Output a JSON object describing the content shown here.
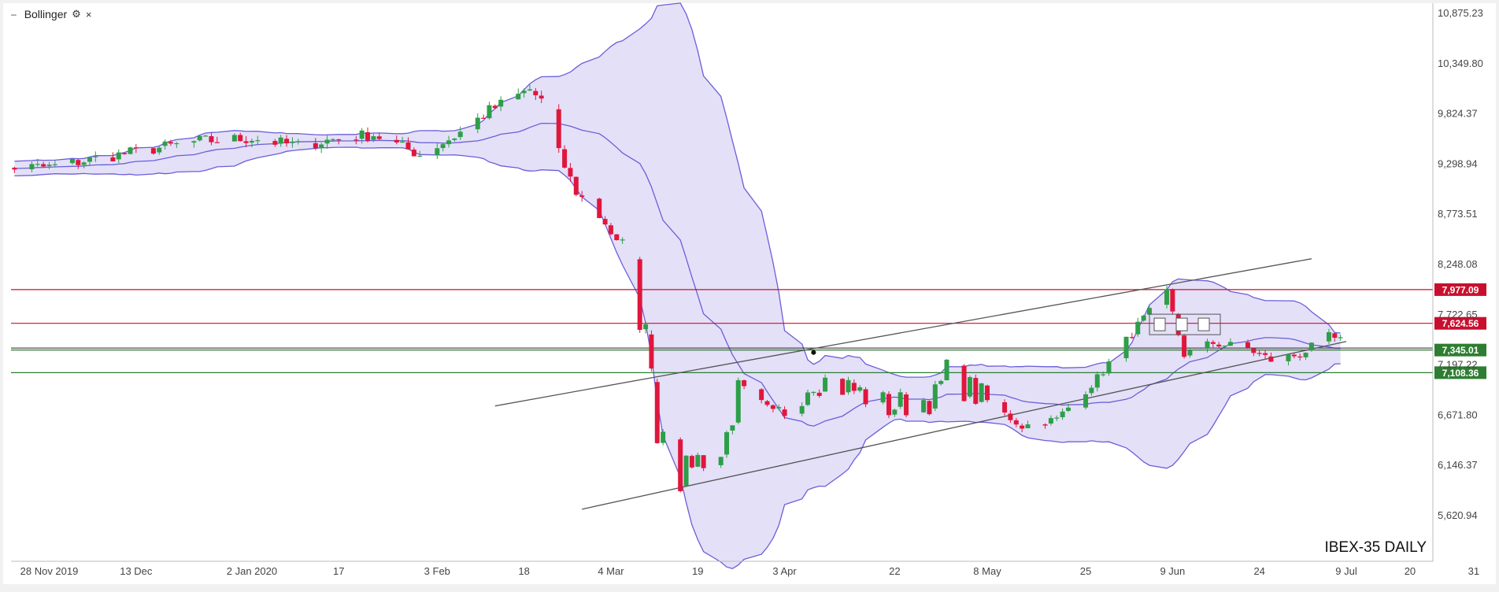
{
  "legend": {
    "indicator": "Bollinger",
    "collapse_icon": "–",
    "settings_icon": "⚙",
    "close_icon": "×"
  },
  "watermark": "IBEX-35 DAILY",
  "chart_data": {
    "type": "candlestick",
    "title": "IBEX-35 DAILY",
    "y_axis": {
      "ticks": [
        "10,875.23",
        "10,349.80",
        "9,824.37",
        "9,298.94",
        "8,773.51",
        "8,248.08",
        "7,722.65",
        "7,197.22",
        "6,671.80",
        "6,146.37",
        "5,620.94"
      ]
    },
    "x_axis": {
      "ticks": [
        "28 Nov 2019",
        "13 Dec",
        "2 Jan 2020",
        "17",
        "3 Feb",
        "18",
        "4 Mar",
        "19",
        "3 Apr",
        "22",
        "8 May",
        "25",
        "9 Jun",
        "24",
        "9 Jul",
        "20",
        "31"
      ]
    },
    "horizontal_levels": [
      {
        "label": "7,977.09",
        "value": 7977.09,
        "color": "#c8102e"
      },
      {
        "label": "7,624.56",
        "value": 7624.56,
        "color": "#c8102e"
      },
      {
        "label": "7,345.01",
        "value": 7345.01,
        "color": "#2e7d32"
      },
      {
        "label": "7,108.36",
        "value": 7108.36,
        "color": "#2e7d32"
      }
    ],
    "trendlines": [
      {
        "from": [
          "13 Feb 2020",
          6760
        ],
        "to": [
          "3 Jul 2020",
          8300
        ]
      },
      {
        "from": [
          "28 Feb 2020",
          5680
        ],
        "to": [
          "9 Jul 2020",
          7435
        ]
      }
    ],
    "colors": {
      "up": "#2e9e48",
      "down": "#e0163c",
      "band_fill": "#e4e0f8",
      "band_line": "#6a5fd8"
    }
  }
}
